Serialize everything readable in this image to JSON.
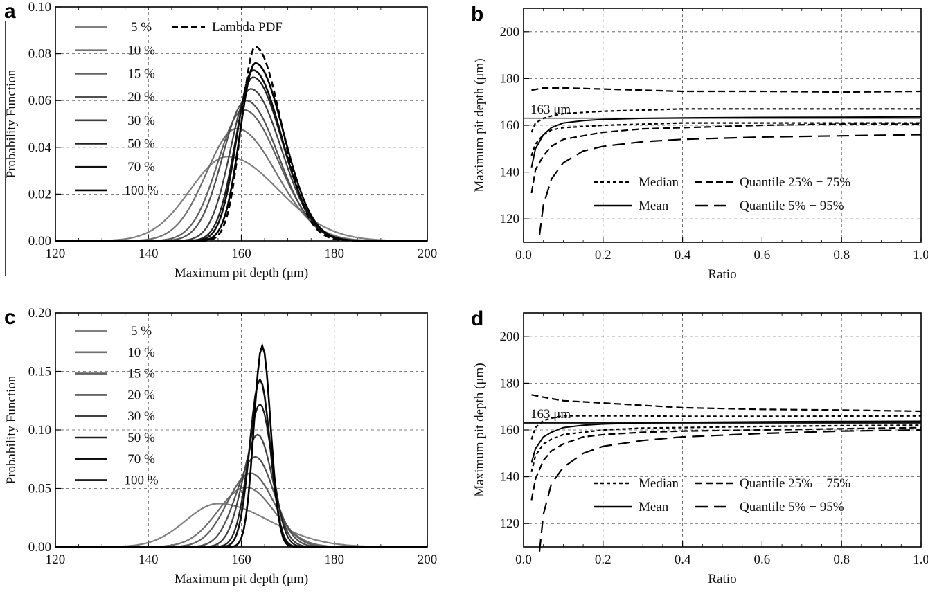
{
  "colors": {
    "black": "#000000",
    "dark": "#202020",
    "mid": "#4a4a4a",
    "light": "#707070",
    "lighter": "#808080",
    "grid": "#555555",
    "ref_line_b": "#888888",
    "ref_line_d": "#111111"
  },
  "chart_data": [
    {
      "panel": "a",
      "type": "line",
      "xlabel": "Maximum pit depth (μm)",
      "ylabel": "Probability Function",
      "xlim": [
        120,
        200
      ],
      "ylim": [
        0,
        0.1
      ],
      "xticks": [
        "120",
        "140",
        "160",
        "180",
        "200"
      ],
      "yticks": [
        "0.00",
        "0.02",
        "0.04",
        "0.06",
        "0.08",
        "0.10"
      ],
      "legend_position": "top-left",
      "series": [
        {
          "name": "5 %",
          "color": "#808080",
          "style": "solid",
          "mu": 157,
          "sl": 8,
          "sr": 11,
          "peak": 0.036
        },
        {
          "name": "10 %",
          "color": "#707070",
          "style": "solid",
          "mu": 159,
          "sl": 6.5,
          "sr": 8.5,
          "peak": 0.048
        },
        {
          "name": "15 %",
          "color": "#606060",
          "style": "solid",
          "mu": 160.5,
          "sl": 5.5,
          "sr": 7.5,
          "peak": 0.056
        },
        {
          "name": "20 %",
          "color": "#505050",
          "style": "solid",
          "mu": 161,
          "sl": 5,
          "sr": 7,
          "peak": 0.06
        },
        {
          "name": "30 %",
          "color": "#404040",
          "style": "solid",
          "mu": 162,
          "sl": 4.3,
          "sr": 6.6,
          "peak": 0.065
        },
        {
          "name": "50 %",
          "color": "#202020",
          "style": "solid",
          "mu": 162.5,
          "sl": 3.8,
          "sr": 6.3,
          "peak": 0.07
        },
        {
          "name": "70 %",
          "color": "#101010",
          "style": "solid",
          "mu": 162.5,
          "sl": 3.5,
          "sr": 6.2,
          "peak": 0.073
        },
        {
          "name": "100 %",
          "color": "#000000",
          "style": "solid",
          "mu": 163,
          "sl": 3.3,
          "sr": 6.1,
          "peak": 0.076
        },
        {
          "name": "Lambda PDF",
          "color": "#000000",
          "style": "dashed",
          "mu": 163,
          "sl": 3.0,
          "sr": 5.6,
          "peak": 0.083
        }
      ]
    },
    {
      "panel": "b",
      "type": "line",
      "xlabel": "Ratio",
      "ylabel": "Maximum  pit depth (μm)",
      "xlim": [
        0,
        1
      ],
      "ylim": [
        110,
        210
      ],
      "xticks": [
        "0.0",
        "0.2",
        "0.4",
        "0.6",
        "0.8",
        "1.0"
      ],
      "yticks": [
        "120",
        "140",
        "160",
        "180",
        "200"
      ],
      "reference_line": {
        "value": 163,
        "label": "163 μm"
      },
      "legend": [
        "Median",
        "Mean",
        "Quantile 25% − 75%",
        "Quantile 5% − 95%"
      ],
      "series": [
        {
          "name": "Mean",
          "style": "solid",
          "x": [
            0.02,
            0.03,
            0.05,
            0.07,
            0.1,
            0.15,
            0.2,
            0.3,
            0.4,
            0.6,
            0.8,
            1.0
          ],
          "y": [
            142,
            150,
            156,
            159,
            161,
            162,
            162.5,
            163,
            163.2,
            163.4,
            163.5,
            163.6
          ]
        },
        {
          "name": "Median",
          "style": "dot",
          "x": [
            0.02,
            0.03,
            0.05,
            0.07,
            0.1,
            0.2,
            0.3,
            0.4,
            0.6,
            0.8,
            1.0
          ],
          "y": [
            157,
            161,
            163,
            164,
            165,
            166,
            166.5,
            167,
            167,
            167,
            167
          ]
        },
        {
          "name": "Median",
          "style": "dot",
          "x": [
            0.02,
            0.03,
            0.05,
            0.07,
            0.1,
            0.2,
            0.3,
            0.4,
            0.6,
            0.8,
            1.0
          ],
          "y": [
            147,
            152,
            156,
            158,
            159,
            160,
            160.5,
            161,
            161,
            161,
            161
          ]
        },
        {
          "name": "Quantile 25% − 75%",
          "style": "dash",
          "x": [
            0.02,
            0.03,
            0.05,
            0.07,
            0.1,
            0.2,
            0.3,
            0.4,
            0.6,
            0.8,
            1.0
          ],
          "y": [
            131,
            141,
            147,
            151,
            154,
            157,
            158.5,
            159,
            160,
            160.5,
            160.5
          ]
        },
        {
          "name": "Quantile 25% − 75%",
          "style": "dash",
          "x": [
            0.02,
            0.05,
            0.1,
            0.2,
            0.3,
            0.4,
            0.6,
            0.8,
            1.0
          ],
          "y": [
            175,
            176,
            176,
            175.5,
            175,
            174.5,
            174.5,
            174.2,
            174.5
          ]
        },
        {
          "name": "Quantile 5% − 95%",
          "style": "longdash",
          "x": [
            0.04,
            0.05,
            0.07,
            0.1,
            0.15,
            0.2,
            0.3,
            0.4,
            0.6,
            0.8,
            1.0
          ],
          "y": [
            113,
            126,
            137,
            144,
            149,
            151,
            153,
            154,
            155,
            155.5,
            156
          ]
        }
      ]
    },
    {
      "panel": "c",
      "type": "line",
      "xlabel": "Maximum pit depth (μm)",
      "ylabel": "Probability Function",
      "xlim": [
        120,
        200
      ],
      "ylim": [
        0,
        0.2
      ],
      "xticks": [
        "120",
        "140",
        "160",
        "180",
        "200"
      ],
      "yticks": [
        "0.00",
        "0.05",
        "0.10",
        "0.15",
        "0.20"
      ],
      "legend_position": "top-left",
      "series": [
        {
          "name": "5 %",
          "color": "#808080",
          "style": "solid",
          "mu": 155,
          "sl": 7,
          "sr": 11,
          "peak": 0.037
        },
        {
          "name": "10 %",
          "color": "#707070",
          "style": "solid",
          "mu": 161,
          "sl": 6,
          "sr": 6,
          "peak": 0.051
        },
        {
          "name": "15 %",
          "color": "#606060",
          "style": "solid",
          "mu": 162,
          "sl": 5,
          "sr": 5,
          "peak": 0.063
        },
        {
          "name": "20 %",
          "color": "#505050",
          "style": "solid",
          "mu": 163,
          "sl": 4,
          "sr": 4,
          "peak": 0.077
        },
        {
          "name": "30 %",
          "color": "#404040",
          "style": "solid",
          "mu": 163.5,
          "sl": 3.2,
          "sr": 3.2,
          "peak": 0.096
        },
        {
          "name": "50 %",
          "color": "#202020",
          "style": "solid",
          "mu": 164,
          "sl": 2.6,
          "sr": 2.6,
          "peak": 0.122
        },
        {
          "name": "70 %",
          "color": "#101010",
          "style": "solid",
          "mu": 164,
          "sl": 2.2,
          "sr": 2.2,
          "peak": 0.143
        },
        {
          "name": "100 %",
          "color": "#000000",
          "style": "solid",
          "mu": 164.5,
          "sl": 1.8,
          "sr": 1.8,
          "peak": 0.172
        }
      ]
    },
    {
      "panel": "d",
      "type": "line",
      "xlabel": "Ratio",
      "ylabel": "Maximum  pit depth (μm)",
      "xlim": [
        0,
        1
      ],
      "ylim": [
        110,
        210
      ],
      "xticks": [
        "0.0",
        "0.2",
        "0.4",
        "0.6",
        "0.8",
        "1.0"
      ],
      "yticks": [
        "120",
        "140",
        "160",
        "180",
        "200"
      ],
      "reference_line": {
        "value": 163,
        "label": "163 μm"
      },
      "legend": [
        "Median",
        "Mean",
        "Quantile 25% − 75%",
        "Quantile 5% − 95%"
      ],
      "series": [
        {
          "name": "Mean",
          "style": "solid",
          "x": [
            0.02,
            0.03,
            0.05,
            0.07,
            0.1,
            0.15,
            0.2,
            0.3,
            0.4,
            0.6,
            0.8,
            1.0
          ],
          "y": [
            146,
            152,
            157,
            159,
            161,
            162,
            162.5,
            163,
            163.2,
            163.5,
            163.6,
            163.7
          ]
        },
        {
          "name": "Median",
          "style": "dot",
          "x": [
            0.02,
            0.03,
            0.05,
            0.07,
            0.1,
            0.2,
            0.3,
            0.4,
            0.6,
            0.8,
            1.0
          ],
          "y": [
            156,
            161,
            164,
            165,
            166,
            166,
            166,
            165.8,
            165.8,
            165.9,
            166
          ]
        },
        {
          "name": "Median",
          "style": "dot",
          "x": [
            0.02,
            0.03,
            0.05,
            0.07,
            0.1,
            0.2,
            0.3,
            0.4,
            0.6,
            0.8,
            1.0
          ],
          "y": [
            142,
            149,
            154,
            156,
            158,
            160,
            160.8,
            161,
            161.5,
            161.8,
            162
          ]
        },
        {
          "name": "Quantile 25% − 75%",
          "style": "dash",
          "x": [
            0.02,
            0.03,
            0.05,
            0.07,
            0.1,
            0.15,
            0.2,
            0.3,
            0.4,
            0.6,
            0.8,
            1.0
          ],
          "y": [
            130,
            139,
            147,
            151,
            154,
            157,
            158,
            159,
            159.5,
            160,
            160.5,
            161
          ]
        },
        {
          "name": "Quantile 25% − 75%",
          "style": "dash",
          "x": [
            0.02,
            0.05,
            0.1,
            0.15,
            0.2,
            0.3,
            0.4,
            0.6,
            0.8,
            1.0
          ],
          "y": [
            175,
            174,
            172.5,
            172,
            171.5,
            170.5,
            169.5,
            168.8,
            168.5,
            168
          ]
        },
        {
          "name": "Quantile 5% − 95%",
          "style": "longdash",
          "x": [
            0.04,
            0.05,
            0.07,
            0.1,
            0.15,
            0.2,
            0.3,
            0.4,
            0.6,
            0.8,
            1.0
          ],
          "y": [
            108,
            124,
            137,
            144,
            150,
            153,
            155.5,
            157,
            158.5,
            159.5,
            160
          ]
        }
      ]
    }
  ],
  "legend_labels": {
    "lambda": "Lambda PDF",
    "median": "Median",
    "mean": "Mean",
    "q25": "Quantile 25% − 75%",
    "q5": "Quantile 5% − 95%"
  }
}
